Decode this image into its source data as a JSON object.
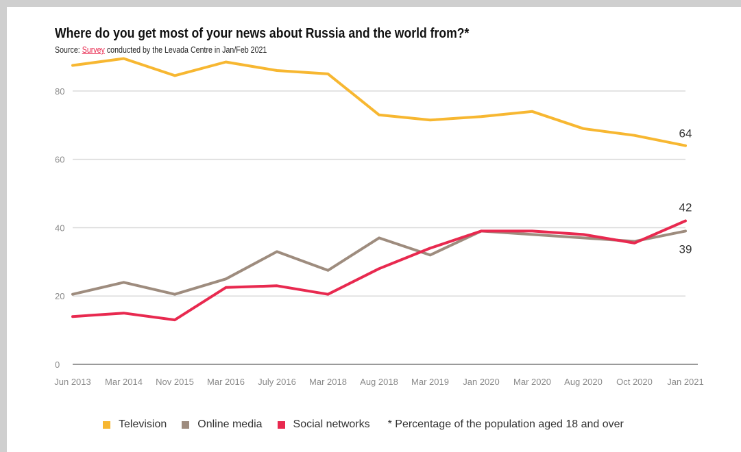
{
  "header": {
    "title": "Where do you get most of your news about Russia and the world from?*",
    "source_prefix": "Source: ",
    "source_link": "Survey",
    "source_suffix": " conducted by the Levada Centre in Jan/Feb 2021"
  },
  "legend": {
    "footnote": "* Percentage of the population aged 18 and over"
  },
  "chart_data": {
    "type": "line",
    "categories": [
      "Jun 2013",
      "Mar 2014",
      "Nov 2015",
      "Mar 2016",
      "July 2016",
      "Mar 2018",
      "Aug 2018",
      "Mar 2019",
      "Jan 2020",
      "Mar 2020",
      "Aug 2020",
      "Oct 2020",
      "Jan 2021"
    ],
    "ylim": [
      0,
      90
    ],
    "yticks": [
      0,
      20,
      40,
      60,
      80
    ],
    "grid": true,
    "legend_position": "bottom",
    "series": [
      {
        "name": "Television",
        "color": "#f7b731",
        "values": [
          87.5,
          89.5,
          84.5,
          88.5,
          86,
          85,
          73,
          71.5,
          72.5,
          74,
          69,
          67,
          64
        ],
        "end_label": "64"
      },
      {
        "name": "Online media",
        "color": "#9e8c7e",
        "values": [
          20.5,
          24,
          20.5,
          25,
          33,
          27.5,
          37,
          32,
          39,
          38,
          37,
          36,
          39
        ],
        "end_label": "39"
      },
      {
        "name": "Social networks",
        "color": "#e8294f",
        "values": [
          14,
          15,
          13,
          22.5,
          23,
          20.5,
          28,
          34,
          39,
          39,
          38,
          35.5,
          42
        ],
        "end_label": "42"
      }
    ]
  }
}
